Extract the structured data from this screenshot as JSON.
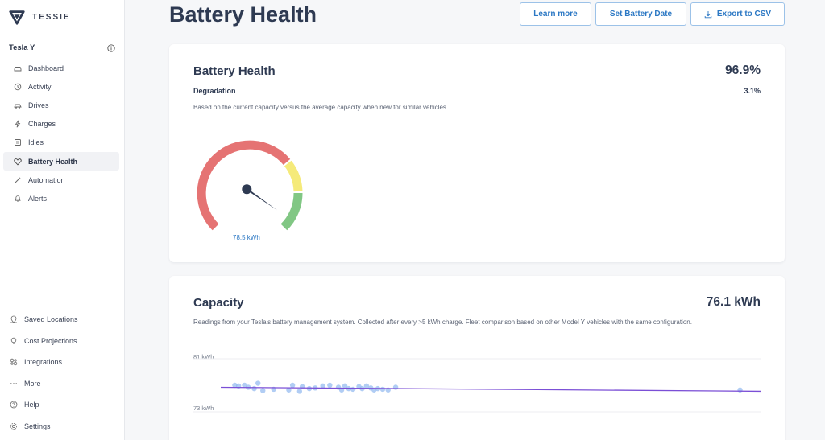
{
  "brand": {
    "name": "TESSIE"
  },
  "vehicle": {
    "name": "Tesla Y"
  },
  "nav": {
    "items": [
      {
        "label": "Dashboard",
        "icon": "car-icon"
      },
      {
        "label": "Activity",
        "icon": "history-icon"
      },
      {
        "label": "Drives",
        "icon": "drives-icon"
      },
      {
        "label": "Charges",
        "icon": "lightning-icon"
      },
      {
        "label": "Idles",
        "icon": "idle-icon"
      },
      {
        "label": "Battery Health",
        "icon": "heart-battery-icon"
      },
      {
        "label": "Automation",
        "icon": "wand-icon"
      },
      {
        "label": "Alerts",
        "icon": "bell-icon"
      }
    ],
    "bottom": [
      {
        "label": "Saved Locations",
        "icon": "locations-icon"
      },
      {
        "label": "Cost Projections",
        "icon": "lightbulb-icon"
      },
      {
        "label": "Integrations",
        "icon": "integrations-icon"
      },
      {
        "label": "More",
        "icon": "more-icon"
      },
      {
        "label": "Help",
        "icon": "help-icon"
      },
      {
        "label": "Settings",
        "icon": "settings-icon"
      }
    ]
  },
  "header": {
    "title": "Battery Health",
    "learn_more": "Learn more",
    "set_battery_date": "Set Battery Date",
    "export_csv": "Export to CSV"
  },
  "health_card": {
    "title": "Battery Health",
    "value": "96.9%",
    "degradation_label": "Degradation",
    "degradation_value": "3.1%",
    "description": "Based on the current capacity versus the average capacity when new for similar vehicles.",
    "gauge_label": "78.5 kWh",
    "gauge_health_fraction": 0.969,
    "colors": {
      "red": "#e57373",
      "yellow": "#f5ea7a",
      "green": "#81c784",
      "needle": "#2e3a52"
    }
  },
  "capacity_card": {
    "title": "Capacity",
    "value": "76.1 kWh",
    "description": "Readings from your Tesla's battery management system. Collected after every >5 kWh charge. Fleet comparison based on other Model Y vehicles with the same configuration."
  },
  "chart_data": {
    "type": "scatter",
    "y_ticks": [
      "81 kWh",
      "73 kWh"
    ],
    "ylim": [
      73,
      81
    ],
    "xlim": [
      0,
      100
    ],
    "grid": true,
    "points_color": "#90b8f0",
    "trend_color": "#7b4fd6",
    "points": [
      {
        "x": 2.6,
        "y": 77.0
      },
      {
        "x": 3.3,
        "y": 76.9
      },
      {
        "x": 4.4,
        "y": 77.0
      },
      {
        "x": 5.1,
        "y": 76.7
      },
      {
        "x": 6.2,
        "y": 76.5
      },
      {
        "x": 6.9,
        "y": 77.3
      },
      {
        "x": 7.8,
        "y": 76.2
      },
      {
        "x": 9.8,
        "y": 76.4
      },
      {
        "x": 12.6,
        "y": 76.3
      },
      {
        "x": 13.3,
        "y": 77.0
      },
      {
        "x": 14.6,
        "y": 76.1
      },
      {
        "x": 15.1,
        "y": 76.8
      },
      {
        "x": 16.4,
        "y": 76.5
      },
      {
        "x": 17.5,
        "y": 76.6
      },
      {
        "x": 18.9,
        "y": 76.9
      },
      {
        "x": 20.2,
        "y": 77.0
      },
      {
        "x": 21.8,
        "y": 76.7
      },
      {
        "x": 22.4,
        "y": 76.3
      },
      {
        "x": 23.0,
        "y": 76.9
      },
      {
        "x": 23.7,
        "y": 76.5
      },
      {
        "x": 24.5,
        "y": 76.4
      },
      {
        "x": 25.6,
        "y": 76.8
      },
      {
        "x": 26.2,
        "y": 76.5
      },
      {
        "x": 27.0,
        "y": 76.9
      },
      {
        "x": 27.8,
        "y": 76.6
      },
      {
        "x": 28.4,
        "y": 76.3
      },
      {
        "x": 29.1,
        "y": 76.5
      },
      {
        "x": 30.0,
        "y": 76.4
      },
      {
        "x": 31.0,
        "y": 76.3
      },
      {
        "x": 32.4,
        "y": 76.7
      },
      {
        "x": 96.2,
        "y": 76.3
      }
    ],
    "trend": [
      {
        "x": 0,
        "y": 76.7
      },
      {
        "x": 100,
        "y": 76.1
      }
    ]
  }
}
